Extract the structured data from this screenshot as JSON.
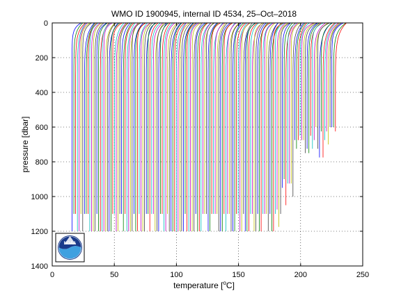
{
  "chart_data": {
    "type": "line",
    "title": "WMO ID 1900945, internal ID 4534, 25–Oct–2018",
    "xlabel": "temperature [",
    "xlabel_unit": "o",
    "xlabel_tail": "C]",
    "ylabel": "pressure [dbar]",
    "xlim": [
      0,
      250
    ],
    "ylim": [
      1400,
      0
    ],
    "y_reversed": true,
    "grid": true,
    "xticks": [
      0,
      50,
      100,
      150,
      200,
      250
    ],
    "yticks": [
      0,
      200,
      400,
      600,
      800,
      1000,
      1200,
      1400
    ],
    "series_note": "",
    "profiles": {
      "count": 150,
      "offset_start": 16.0,
      "offset_end": 228.0,
      "surface_temp": 6.5,
      "deep_temp": 0.0,
      "main_max_pressure": 1200,
      "tail_max_pressure": 600
    },
    "colors": [
      "#0000ff",
      "#008000",
      "#ff0000",
      "#00bfbf",
      "#bf00bf",
      "#bfbf00",
      "#404040"
    ],
    "logo": {
      "name": "noaa-logo",
      "text": "NOAA"
    }
  }
}
